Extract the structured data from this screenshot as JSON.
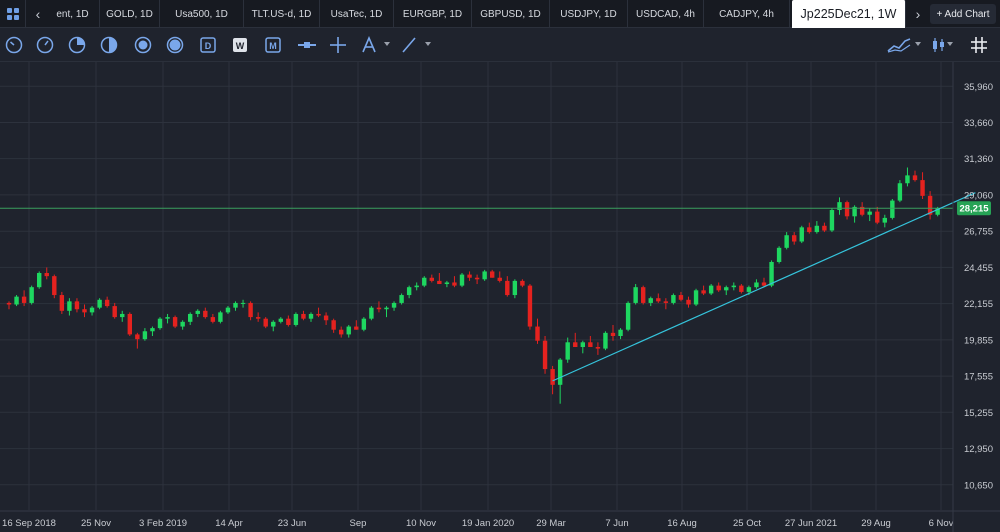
{
  "tabs": [
    {
      "label": "ent, 1D"
    },
    {
      "label": "GOLD, 1D"
    },
    {
      "label": "Usa500, 1D"
    },
    {
      "label": "TLT.US-d, 1D"
    },
    {
      "label": "UsaTec, 1D"
    },
    {
      "label": "EURGBP, 1D"
    },
    {
      "label": "GBPUSD, 1D"
    },
    {
      "label": "USDJPY, 1D"
    },
    {
      "label": "USDCAD, 4h"
    },
    {
      "label": "CADJPY, 4h"
    },
    {
      "label": "Jp225Dec21, 1W"
    }
  ],
  "add_chart": "+ Add Chart",
  "icons": {
    "grid": "grid-icon",
    "tab_prev": "chevron-left-icon",
    "tab_next": "chevron-right-icon",
    "tools": [
      "gauge-icon",
      "gauge-alt-icon",
      "pie-icon",
      "half-circle-icon",
      "coin-icon",
      "coin-filled-icon",
      "d-calendar-icon",
      "w-calendar-icon",
      "m-calendar-icon",
      "minus-slider-icon",
      "crosshair-icon",
      "text-annotation-icon",
      "trendline-icon",
      "indicators-icon",
      "candle-type-icon",
      "grid-toggle-icon"
    ]
  },
  "colors": {
    "up": "#1ed760",
    "down": "#e5221f",
    "trendline": "#35c4dc",
    "price_line": "#3aa05e",
    "price_badge": "#27a356",
    "background": "#1f232d"
  },
  "chart_data": {
    "type": "candlestick",
    "symbol": "Jp225Dec21",
    "timeframe": "1W",
    "current_price": "28,215",
    "y_ticks": [
      "35,960",
      "33,660",
      "31,360",
      "29,060",
      "26,755",
      "24,455",
      "22,155",
      "19,855",
      "17,555",
      "15,255",
      "12,950",
      "10,650"
    ],
    "y_tick_values": [
      35960,
      33660,
      31360,
      29060,
      26755,
      24455,
      22155,
      19855,
      17555,
      15255,
      12950,
      10650
    ],
    "ylim": [
      9050,
      37500
    ],
    "x_ticks": [
      "16 Sep 2018",
      "25 Nov",
      "3 Feb 2019",
      "14 Apr",
      "23 Jun",
      "Sep",
      "10 Nov",
      "19 Jan 2020",
      "29 Mar",
      "7 Jun",
      "16 Aug",
      "25 Oct",
      "27 Jun 2021",
      "29 Aug",
      "6 Nov"
    ],
    "candles": [
      [
        22200,
        22300,
        21800,
        22100
      ],
      [
        22100,
        22700,
        22000,
        22600
      ],
      [
        22600,
        23000,
        22000,
        22200
      ],
      [
        22200,
        23300,
        22100,
        23200
      ],
      [
        23200,
        24200,
        23100,
        24100
      ],
      [
        24100,
        24450,
        23700,
        23900
      ],
      [
        23900,
        24000,
        22500,
        22700
      ],
      [
        22700,
        22900,
        21500,
        21700
      ],
      [
        21700,
        22500,
        21400,
        22300
      ],
      [
        22300,
        22500,
        21600,
        21800
      ],
      [
        21800,
        22100,
        21300,
        21600
      ],
      [
        21600,
        22000,
        21400,
        21900
      ],
      [
        21900,
        22500,
        21800,
        22400
      ],
      [
        22400,
        22600,
        21900,
        22000
      ],
      [
        22000,
        22200,
        21200,
        21300
      ],
      [
        21300,
        21700,
        21000,
        21500
      ],
      [
        21500,
        21600,
        20100,
        20200
      ],
      [
        20200,
        20300,
        19300,
        19900
      ],
      [
        19900,
        20600,
        19800,
        20400
      ],
      [
        20400,
        20700,
        20100,
        20600
      ],
      [
        20600,
        21300,
        20500,
        21200
      ],
      [
        21200,
        21500,
        20900,
        21300
      ],
      [
        21300,
        21400,
        20600,
        20700
      ],
      [
        20700,
        21100,
        20500,
        21000
      ],
      [
        21000,
        21600,
        20800,
        21500
      ],
      [
        21500,
        21800,
        21300,
        21700
      ],
      [
        21700,
        21900,
        21200,
        21300
      ],
      [
        21300,
        21500,
        20900,
        21000
      ],
      [
        21000,
        21700,
        20900,
        21600
      ],
      [
        21600,
        22000,
        21500,
        21900
      ],
      [
        21900,
        22300,
        21700,
        22200
      ],
      [
        22200,
        22400,
        21900,
        22200
      ],
      [
        22200,
        22300,
        21100,
        21300
      ],
      [
        21300,
        21600,
        21000,
        21200
      ],
      [
        21200,
        21300,
        20600,
        20700
      ],
      [
        20700,
        21100,
        20400,
        21000
      ],
      [
        21000,
        21300,
        20900,
        21200
      ],
      [
        21200,
        21400,
        20700,
        20800
      ],
      [
        20800,
        21600,
        20700,
        21500
      ],
      [
        21500,
        21700,
        21100,
        21200
      ],
      [
        21200,
        21600,
        21000,
        21500
      ],
      [
        21500,
        21900,
        21300,
        21400
      ],
      [
        21400,
        21600,
        20800,
        21100
      ],
      [
        21100,
        21200,
        20300,
        20500
      ],
      [
        20500,
        20700,
        20000,
        20200
      ],
      [
        20200,
        20800,
        20000,
        20700
      ],
      [
        20700,
        21100,
        20500,
        20500
      ],
      [
        20500,
        21300,
        20400,
        21200
      ],
      [
        21200,
        22000,
        21100,
        21900
      ],
      [
        21900,
        22300,
        21600,
        21800
      ],
      [
        21800,
        22000,
        21300,
        21900
      ],
      [
        21900,
        22300,
        21700,
        22200
      ],
      [
        22200,
        22800,
        22100,
        22700
      ],
      [
        22700,
        23300,
        22500,
        23200
      ],
      [
        23200,
        23500,
        23000,
        23300
      ],
      [
        23300,
        23900,
        23200,
        23800
      ],
      [
        23800,
        24000,
        23500,
        23600
      ],
      [
        23600,
        24100,
        23400,
        23400
      ],
      [
        23400,
        23600,
        23200,
        23500
      ],
      [
        23500,
        23900,
        23200,
        23300
      ],
      [
        23300,
        24100,
        23200,
        24000
      ],
      [
        24000,
        24200,
        23600,
        23800
      ],
      [
        23800,
        24000,
        23400,
        23700
      ],
      [
        23700,
        24300,
        23600,
        24200
      ],
      [
        24200,
        24300,
        23800,
        23800
      ],
      [
        23800,
        24200,
        23500,
        23600
      ],
      [
        23600,
        23900,
        22600,
        22700
      ],
      [
        22700,
        23700,
        22500,
        23600
      ],
      [
        23600,
        23700,
        23200,
        23300
      ],
      [
        23300,
        23400,
        20500,
        20700
      ],
      [
        20700,
        21200,
        19600,
        19800
      ],
      [
        19800,
        20100,
        17700,
        18000
      ],
      [
        18000,
        18200,
        16400,
        17000
      ],
      [
        17000,
        18700,
        15800,
        18600
      ],
      [
        18600,
        20000,
        18400,
        19700
      ],
      [
        19700,
        20300,
        19400,
        19400
      ],
      [
        19400,
        19800,
        19000,
        19700
      ],
      [
        19700,
        20100,
        19400,
        19400
      ],
      [
        19400,
        19700,
        18900,
        19300
      ],
      [
        19300,
        20400,
        19200,
        20300
      ],
      [
        20300,
        20800,
        19800,
        20100
      ],
      [
        20100,
        20600,
        19900,
        20500
      ],
      [
        20500,
        22300,
        20400,
        22200
      ],
      [
        22200,
        23400,
        22100,
        23200
      ],
      [
        23200,
        23300,
        22100,
        22200
      ],
      [
        22200,
        22600,
        22000,
        22500
      ],
      [
        22500,
        22800,
        22200,
        22300
      ],
      [
        22300,
        22500,
        21800,
        22200
      ],
      [
        22200,
        22800,
        22100,
        22700
      ],
      [
        22700,
        22900,
        22300,
        22400
      ],
      [
        22400,
        22600,
        21900,
        22100
      ],
      [
        22100,
        23100,
        22000,
        23000
      ],
      [
        23000,
        23300,
        22700,
        22800
      ],
      [
        22800,
        23400,
        22700,
        23300
      ],
      [
        23300,
        23500,
        22900,
        23000
      ],
      [
        23000,
        23300,
        22700,
        23200
      ],
      [
        23200,
        23500,
        23000,
        23300
      ],
      [
        23300,
        23400,
        22800,
        22900
      ],
      [
        22900,
        23300,
        22700,
        23200
      ],
      [
        23200,
        23700,
        23100,
        23500
      ],
      [
        23500,
        23800,
        23200,
        23300
      ],
      [
        23300,
        24900,
        23200,
        24800
      ],
      [
        24800,
        25800,
        24700,
        25700
      ],
      [
        25700,
        26700,
        25600,
        26500
      ],
      [
        26500,
        26700,
        25900,
        26100
      ],
      [
        26100,
        27100,
        26000,
        27000
      ],
      [
        27000,
        27300,
        26600,
        26700
      ],
      [
        26700,
        27400,
        26600,
        27100
      ],
      [
        27100,
        27300,
        26700,
        26800
      ],
      [
        26800,
        28200,
        26700,
        28100
      ],
      [
        28100,
        28900,
        27800,
        28600
      ],
      [
        28600,
        28700,
        27500,
        27700
      ],
      [
        27700,
        28400,
        27300,
        28300
      ],
      [
        28300,
        28600,
        27700,
        27800
      ],
      [
        27800,
        28200,
        27400,
        28000
      ],
      [
        28000,
        28300,
        27200,
        27300
      ],
      [
        27300,
        27800,
        27000,
        27600
      ],
      [
        27600,
        28800,
        27500,
        28700
      ],
      [
        28700,
        30000,
        28600,
        29800
      ],
      [
        29800,
        30800,
        29600,
        30300
      ],
      [
        30300,
        30600,
        29900,
        30000
      ],
      [
        30000,
        30500,
        28800,
        29000
      ],
      [
        29000,
        29300,
        27500,
        27800
      ],
      [
        27800,
        28300,
        27700,
        28215
      ]
    ],
    "trendline": [
      [
        72,
        17250
      ],
      [
        128,
        29200
      ]
    ],
    "horizontal_line": 28215
  }
}
